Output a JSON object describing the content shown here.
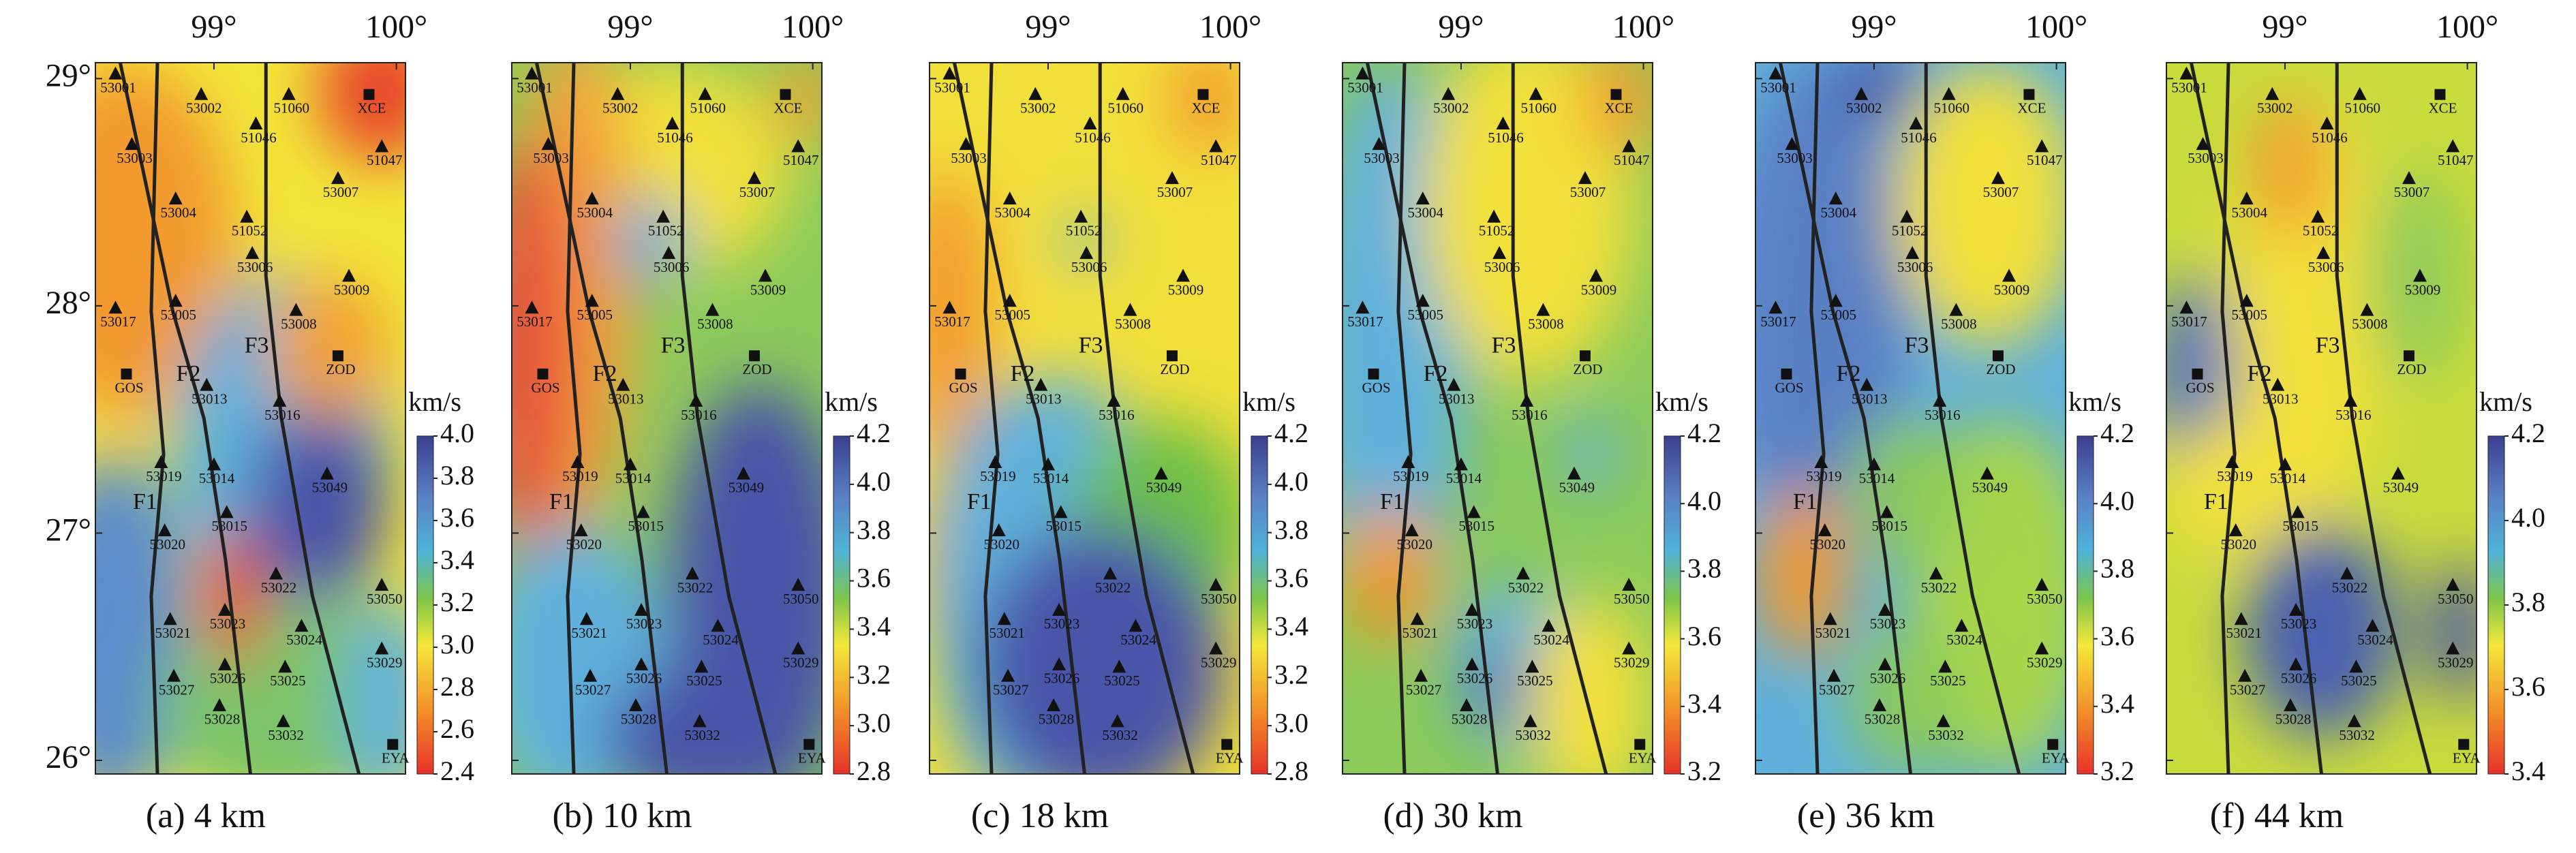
{
  "axes": {
    "xlim": [
      98.35,
      100.05
    ],
    "ylim": [
      25.94,
      29.07
    ],
    "lon_ticks": [
      {
        "value": 99,
        "label": "99°"
      },
      {
        "value": 100,
        "label": "100°"
      }
    ],
    "lat_ticks": [
      {
        "value": 29,
        "label": "29°"
      },
      {
        "value": 28,
        "label": "28°"
      },
      {
        "value": 27,
        "label": "27°"
      },
      {
        "value": 26,
        "label": "26°"
      }
    ]
  },
  "colorbar_unit": "km/s",
  "faults": [
    "F1",
    "F2",
    "F3"
  ],
  "stations": [
    {
      "name": "53001",
      "lon": 98.46,
      "lat": 29.02
    },
    {
      "name": "53002",
      "lon": 98.93,
      "lat": 28.93
    },
    {
      "name": "51060",
      "lon": 99.41,
      "lat": 28.93
    },
    {
      "name": "XCE",
      "lon": 99.85,
      "lat": 28.93
    },
    {
      "name": "51046",
      "lon": 99.23,
      "lat": 28.8
    },
    {
      "name": "53003",
      "lon": 98.55,
      "lat": 28.71
    },
    {
      "name": "51047",
      "lon": 99.92,
      "lat": 28.7
    },
    {
      "name": "53007",
      "lon": 99.68,
      "lat": 28.56
    },
    {
      "name": "53004",
      "lon": 98.79,
      "lat": 28.47
    },
    {
      "name": "51052",
      "lon": 99.18,
      "lat": 28.39
    },
    {
      "name": "53006",
      "lon": 99.21,
      "lat": 28.23
    },
    {
      "name": "53009",
      "lon": 99.74,
      "lat": 28.13
    },
    {
      "name": "53017",
      "lon": 98.46,
      "lat": 27.99
    },
    {
      "name": "53005",
      "lon": 98.79,
      "lat": 28.02
    },
    {
      "name": "53008",
      "lon": 99.45,
      "lat": 27.98
    },
    {
      "name": "ZOD",
      "lon": 99.68,
      "lat": 27.78
    },
    {
      "name": "GOS",
      "lon": 98.52,
      "lat": 27.7
    },
    {
      "name": "53013",
      "lon": 98.96,
      "lat": 27.65
    },
    {
      "name": "53016",
      "lon": 99.36,
      "lat": 27.58
    },
    {
      "name": "53019",
      "lon": 98.71,
      "lat": 27.31
    },
    {
      "name": "53014",
      "lon": 99.0,
      "lat": 27.3
    },
    {
      "name": "53049",
      "lon": 99.62,
      "lat": 27.26
    },
    {
      "name": "53020",
      "lon": 98.73,
      "lat": 27.01
    },
    {
      "name": "53015",
      "lon": 99.07,
      "lat": 27.09
    },
    {
      "name": "53022",
      "lon": 99.34,
      "lat": 26.82
    },
    {
      "name": "53050",
      "lon": 99.92,
      "lat": 26.77
    },
    {
      "name": "53023",
      "lon": 99.06,
      "lat": 26.66
    },
    {
      "name": "53021",
      "lon": 98.76,
      "lat": 26.62
    },
    {
      "name": "53024",
      "lon": 99.48,
      "lat": 26.59
    },
    {
      "name": "53029",
      "lon": 99.92,
      "lat": 26.49
    },
    {
      "name": "53026",
      "lon": 99.06,
      "lat": 26.42
    },
    {
      "name": "53025",
      "lon": 99.39,
      "lat": 26.41
    },
    {
      "name": "53027",
      "lon": 98.78,
      "lat": 26.37
    },
    {
      "name": "53028",
      "lon": 99.03,
      "lat": 26.24
    },
    {
      "name": "53032",
      "lon": 99.38,
      "lat": 26.17
    },
    {
      "name": "EYA",
      "lon": 99.98,
      "lat": 26.07
    }
  ],
  "panels": [
    {
      "caption": "(a) 4 km",
      "clim": [
        2.4,
        4.0
      ],
      "cticks": [
        {
          "value": 4,
          "label": "4.0"
        },
        3.8,
        3.6,
        3.4,
        3.2,
        {
          "value": 3,
          "label": "3.0"
        },
        2.8,
        2.6,
        2.4
      ]
    },
    {
      "caption": "(b) 10 km",
      "clim": [
        2.8,
        4.2
      ],
      "cticks": [
        4.2,
        {
          "value": 4,
          "label": "4.0"
        },
        3.8,
        3.6,
        3.4,
        3.2,
        {
          "value": 3,
          "label": "3.0"
        },
        2.8
      ]
    },
    {
      "caption": "(c) 18 km",
      "clim": [
        2.8,
        4.2
      ],
      "cticks": [
        4.2,
        {
          "value": 4,
          "label": "4.0"
        },
        3.8,
        3.6,
        3.4,
        3.2,
        {
          "value": 3,
          "label": "3.0"
        },
        2.8
      ]
    },
    {
      "caption": "(d) 30 km",
      "clim": [
        3.2,
        4.2
      ],
      "cticks": [
        4.2,
        {
          "value": 4,
          "label": "4.0"
        },
        3.8,
        3.6,
        3.4,
        3.2
      ]
    },
    {
      "caption": "(e) 36 km",
      "clim": [
        3.2,
        4.2
      ],
      "cticks": [
        4.2,
        {
          "value": 4,
          "label": "4.0"
        },
        3.8,
        3.6,
        3.4,
        3.2
      ]
    },
    {
      "caption": "(f) 44 km",
      "clim": [
        3.4,
        4.2
      ],
      "cticks": [
        4.2,
        {
          "value": 4,
          "label": "4.0"
        },
        3.8,
        3.6,
        3.4
      ]
    }
  ]
}
